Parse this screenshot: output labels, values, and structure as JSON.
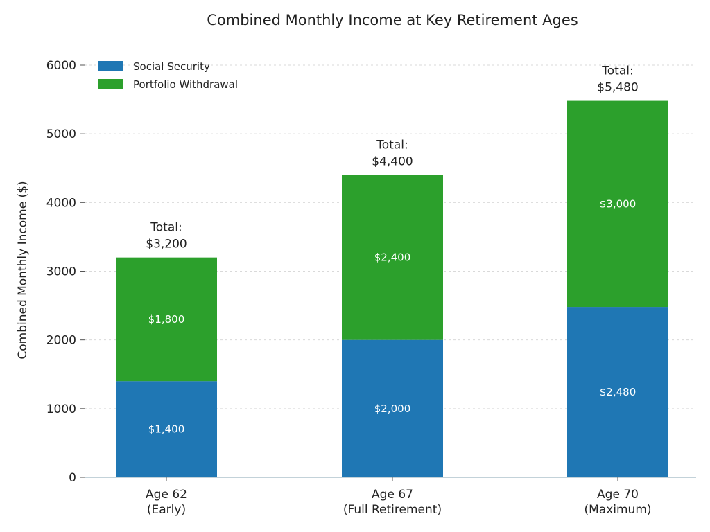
{
  "chart_data": {
    "type": "bar",
    "stacked": true,
    "title": "Combined Monthly Income at Key Retirement Ages",
    "ylabel": "Combined Monthly Income ($)",
    "xlabel": "",
    "ylim": [
      0,
      6100
    ],
    "yticks": [
      "0",
      "1000",
      "2000",
      "3000",
      "4000",
      "5000",
      "6000"
    ],
    "ytick_values": [
      0,
      1000,
      2000,
      3000,
      4000,
      5000,
      6000
    ],
    "grid": true,
    "legend_position": "top-left",
    "categories": [
      [
        "Age 62",
        "(Early)"
      ],
      [
        "Age 67",
        "(Full Retirement)"
      ],
      [
        "Age 70",
        "(Maximum)"
      ]
    ],
    "series": [
      {
        "name": "Social Security",
        "color": "#1f77b4",
        "values": [
          1400,
          2000,
          2480
        ],
        "labels": [
          "$1,400",
          "$2,000",
          "$2,480"
        ]
      },
      {
        "name": "Portfolio Withdrawal",
        "color": "#2ca02c",
        "values": [
          1800,
          2400,
          3000
        ],
        "labels": [
          "$1,800",
          "$2,400",
          "$3,000"
        ]
      }
    ],
    "totals": [
      [
        "Total:",
        "$3,200"
      ],
      [
        "Total:",
        "$4,400"
      ],
      [
        "Total:",
        "$5,480"
      ]
    ]
  }
}
